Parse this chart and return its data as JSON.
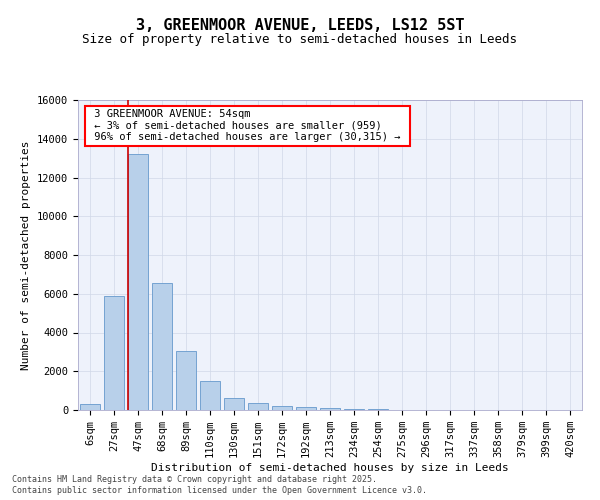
{
  "title": "3, GREENMOOR AVENUE, LEEDS, LS12 5ST",
  "subtitle": "Size of property relative to semi-detached houses in Leeds",
  "xlabel": "Distribution of semi-detached houses by size in Leeds",
  "ylabel": "Number of semi-detached properties",
  "footnote1": "Contains HM Land Registry data © Crown copyright and database right 2025.",
  "footnote2": "Contains public sector information licensed under the Open Government Licence v3.0.",
  "annotation_title": "3 GREENMOOR AVENUE: 54sqm",
  "annotation_line1": "← 3% of semi-detached houses are smaller (959)",
  "annotation_line2": "96% of semi-detached houses are larger (30,315) →",
  "bar_categories": [
    "6sqm",
    "27sqm",
    "47sqm",
    "68sqm",
    "89sqm",
    "110sqm",
    "130sqm",
    "151sqm",
    "172sqm",
    "192sqm",
    "213sqm",
    "234sqm",
    "254sqm",
    "275sqm",
    "296sqm",
    "317sqm",
    "337sqm",
    "358sqm",
    "379sqm",
    "399sqm",
    "420sqm"
  ],
  "bar_values": [
    300,
    5900,
    13200,
    6550,
    3050,
    1500,
    600,
    350,
    230,
    130,
    80,
    50,
    30,
    20,
    10,
    5,
    2,
    1,
    1,
    0,
    0
  ],
  "bar_color": "#b8d0ea",
  "bar_edgecolor": "#6699cc",
  "line_color": "#cc0000",
  "red_line_x": 1.58,
  "ylim": [
    0,
    16000
  ],
  "yticks": [
    0,
    2000,
    4000,
    6000,
    8000,
    10000,
    12000,
    14000,
    16000
  ],
  "grid_color": "#d0d8e8",
  "bg_color": "#eef2fb",
  "title_fontsize": 11,
  "subtitle_fontsize": 9,
  "axis_fontsize": 8,
  "tick_fontsize": 7.5,
  "footnote_fontsize": 6,
  "annotation_fontsize": 7.5
}
